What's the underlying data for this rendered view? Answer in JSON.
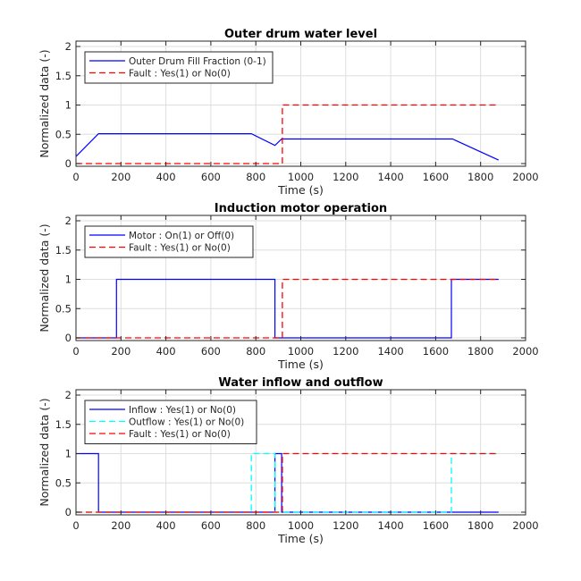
{
  "chart_data": [
    {
      "type": "line",
      "title": "Outer drum water level",
      "xlabel": "Time (s)",
      "ylabel": "Normalized data (-)",
      "xlim": [
        0,
        2000
      ],
      "ylim": [
        0,
        2
      ],
      "xticks": [
        0,
        200,
        400,
        600,
        800,
        1000,
        1200,
        1400,
        1600,
        1800,
        2000
      ],
      "yticks": [
        0,
        0.5,
        1,
        1.5,
        2
      ],
      "ytick_labels": [
        "0",
        "0.5",
        "1",
        "1.5",
        "2"
      ],
      "grid": true,
      "legend_position": "top-left",
      "series": [
        {
          "name": "Outer Drum Fill Fraction (0-1)",
          "style": "solid",
          "color": "#0000ff",
          "x": [
            0,
            100,
            780,
            885,
            915,
            1675,
            1880
          ],
          "y": [
            0.12,
            0.51,
            0.51,
            0.31,
            0.42,
            0.42,
            0.06
          ]
        },
        {
          "name": "Fault : Yes(1) or No(0)",
          "style": "dashed",
          "color": "#ff0000",
          "x": [
            0,
            918,
            918,
            1880
          ],
          "y": [
            0,
            0,
            1,
            1
          ]
        }
      ]
    },
    {
      "type": "line",
      "title": "Induction motor operation",
      "xlabel": "Time (s)",
      "ylabel": "Normalized data (-)",
      "xlim": [
        0,
        2000
      ],
      "ylim": [
        0,
        2
      ],
      "xticks": [
        0,
        200,
        400,
        600,
        800,
        1000,
        1200,
        1400,
        1600,
        1800,
        2000
      ],
      "yticks": [
        0,
        0.5,
        1,
        1.5,
        2
      ],
      "ytick_labels": [
        "0",
        "0.5",
        "1",
        "1.5",
        "2"
      ],
      "grid": true,
      "legend_position": "top-left",
      "series": [
        {
          "name": "Motor : On(1) or Off(0)",
          "style": "solid",
          "color": "#0000ff",
          "x": [
            0,
            180,
            180,
            885,
            885,
            1670,
            1670,
            1880
          ],
          "y": [
            0,
            0,
            1,
            1,
            0,
            0,
            1,
            1
          ]
        },
        {
          "name": "Fault : Yes(1) or No(0)",
          "style": "dashed",
          "color": "#ff0000",
          "x": [
            0,
            918,
            918,
            1880
          ],
          "y": [
            0,
            0,
            1,
            1
          ]
        }
      ]
    },
    {
      "type": "line",
      "title": "Water inflow and outflow",
      "xlabel": "Time (s)",
      "ylabel": "Normalized data (-)",
      "xlim": [
        0,
        2000
      ],
      "ylim": [
        0,
        2
      ],
      "xticks": [
        0,
        200,
        400,
        600,
        800,
        1000,
        1200,
        1400,
        1600,
        1800,
        2000
      ],
      "yticks": [
        0,
        0.5,
        1,
        1.5,
        2
      ],
      "ytick_labels": [
        "0",
        "0.5",
        "1",
        "1.5",
        "2"
      ],
      "grid": true,
      "legend_position": "top-left",
      "series": [
        {
          "name": "Inflow : Yes(1) or No(0)",
          "style": "solid",
          "color": "#0000ff",
          "x": [
            0,
            100,
            100,
            885,
            885,
            915,
            915,
            1880
          ],
          "y": [
            1,
            1,
            0,
            0,
            1,
            1,
            0,
            0
          ]
        },
        {
          "name": "Outflow : Yes(1) or No(0)",
          "style": "dashed",
          "color": "#00ffff",
          "x": [
            0,
            780,
            780,
            885,
            885,
            1670,
            1670,
            1880
          ],
          "y": [
            0,
            0,
            1,
            1,
            0,
            0,
            1,
            1
          ]
        },
        {
          "name": "Fault : Yes(1) or No(0)",
          "style": "dashed",
          "color": "#ff0000",
          "x": [
            0,
            918,
            918,
            1880
          ],
          "y": [
            0,
            0,
            1,
            1
          ]
        }
      ]
    }
  ]
}
